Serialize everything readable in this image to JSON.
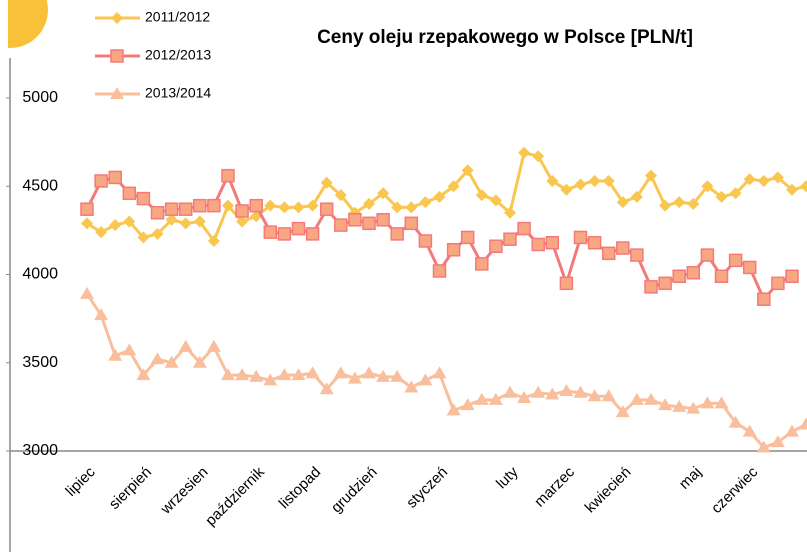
{
  "chart_data": {
    "type": "line",
    "title": "Ceny oleju rzepakowego w Polsce [PLN/t]",
    "categories": [
      "lipiec",
      null,
      null,
      null,
      "sierpień",
      null,
      null,
      null,
      "wrzesien",
      null,
      null,
      null,
      "październik",
      null,
      null,
      null,
      "listopad",
      null,
      null,
      null,
      "grudzień",
      null,
      null,
      null,
      null,
      "styczeń",
      null,
      null,
      null,
      null,
      "luty",
      null,
      null,
      null,
      "marzec",
      null,
      null,
      null,
      "kwiecień",
      null,
      null,
      null,
      null,
      "maj",
      null,
      null,
      null,
      "czerwiec",
      null,
      null,
      null,
      null
    ],
    "series": [
      {
        "name": "2011/2012",
        "color": "#f9c650",
        "marker": "diamond",
        "values": [
          4290,
          4240,
          4280,
          4300,
          4210,
          4230,
          4310,
          4290,
          4300,
          4190,
          4390,
          4300,
          4330,
          4390,
          4380,
          4380,
          4390,
          4520,
          4450,
          4350,
          4400,
          4460,
          4380,
          4380,
          4410,
          4440,
          4500,
          4590,
          4450,
          4420,
          4350,
          4690,
          4670,
          4530,
          4480,
          4510,
          4530,
          4530,
          4410,
          4440,
          4560,
          4390,
          4410,
          4400,
          4500,
          4440,
          4460,
          4540,
          4530,
          4550,
          4480,
          4500
        ]
      },
      {
        "name": "2012/2013",
        "color": "#f47a7a",
        "marker": "square",
        "values": [
          4370,
          4530,
          4550,
          4460,
          4430,
          4350,
          4370,
          4370,
          4390,
          4390,
          4560,
          4360,
          4390,
          4240,
          4230,
          4260,
          4230,
          4370,
          4280,
          4310,
          4290,
          4310,
          4230,
          4290,
          4190,
          4020,
          4140,
          4210,
          4060,
          4160,
          4200,
          4260,
          4170,
          4180,
          3950,
          4210,
          4180,
          4120,
          4150,
          4110,
          3930,
          3950,
          3990,
          4010,
          4110,
          3990,
          4080,
          4040,
          3860,
          3950,
          3990,
          null
        ]
      },
      {
        "name": "2013/2014",
        "color": "#f9bf9c",
        "marker": "triangle",
        "values": [
          3890,
          3770,
          3540,
          3570,
          3430,
          3520,
          3500,
          3590,
          3500,
          3590,
          3430,
          3430,
          3420,
          3400,
          3430,
          3430,
          3440,
          3350,
          3440,
          3410,
          3440,
          3420,
          3420,
          3360,
          3400,
          3440,
          3230,
          3260,
          3290,
          3290,
          3330,
          3300,
          3330,
          3320,
          3340,
          3330,
          3310,
          3310,
          3220,
          3290,
          3290,
          3260,
          3250,
          3240,
          3270,
          3270,
          3160,
          3110,
          3020,
          3050,
          3110,
          3150
        ]
      }
    ],
    "ylim": [
      3000,
      5000
    ],
    "yticks": [
      3000,
      3500,
      4000,
      4500,
      5000
    ]
  }
}
